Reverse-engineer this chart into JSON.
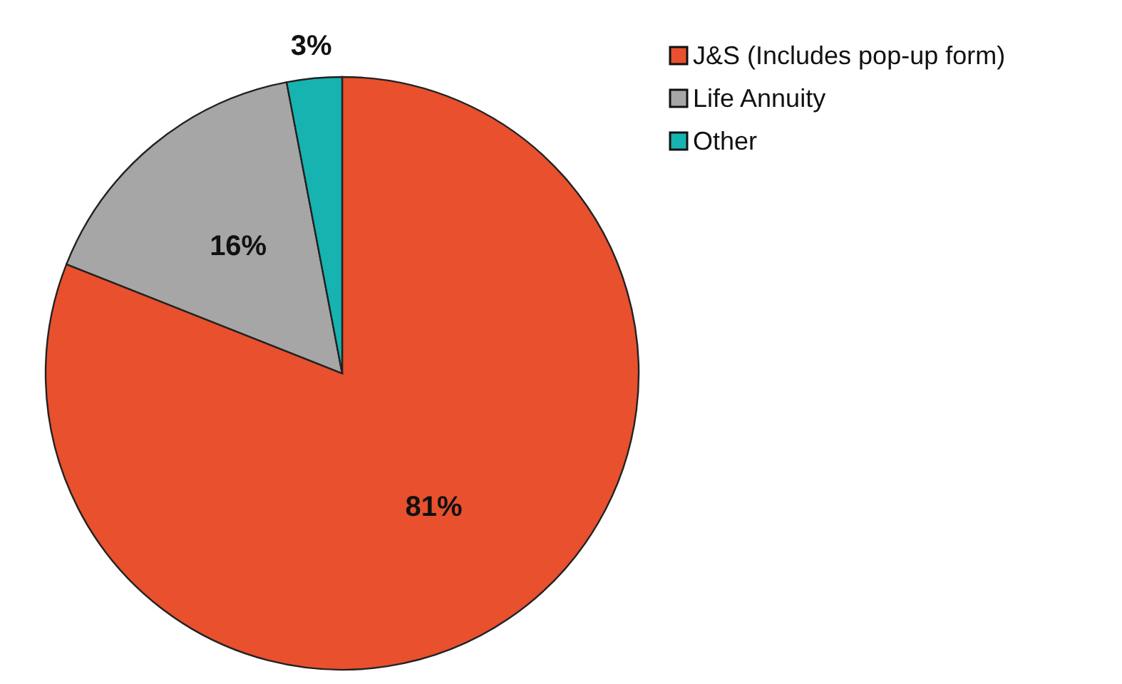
{
  "chart_data": {
    "type": "pie",
    "categories": [
      "J&S (Includes pop-up form)",
      "Life Annuity",
      "Other"
    ],
    "values": [
      81,
      16,
      3
    ],
    "value_labels": [
      "81%",
      "16%",
      "3%"
    ],
    "colors": [
      "#e8502e",
      "#a6a6a6",
      "#17b3b0"
    ],
    "legend": "top right"
  }
}
